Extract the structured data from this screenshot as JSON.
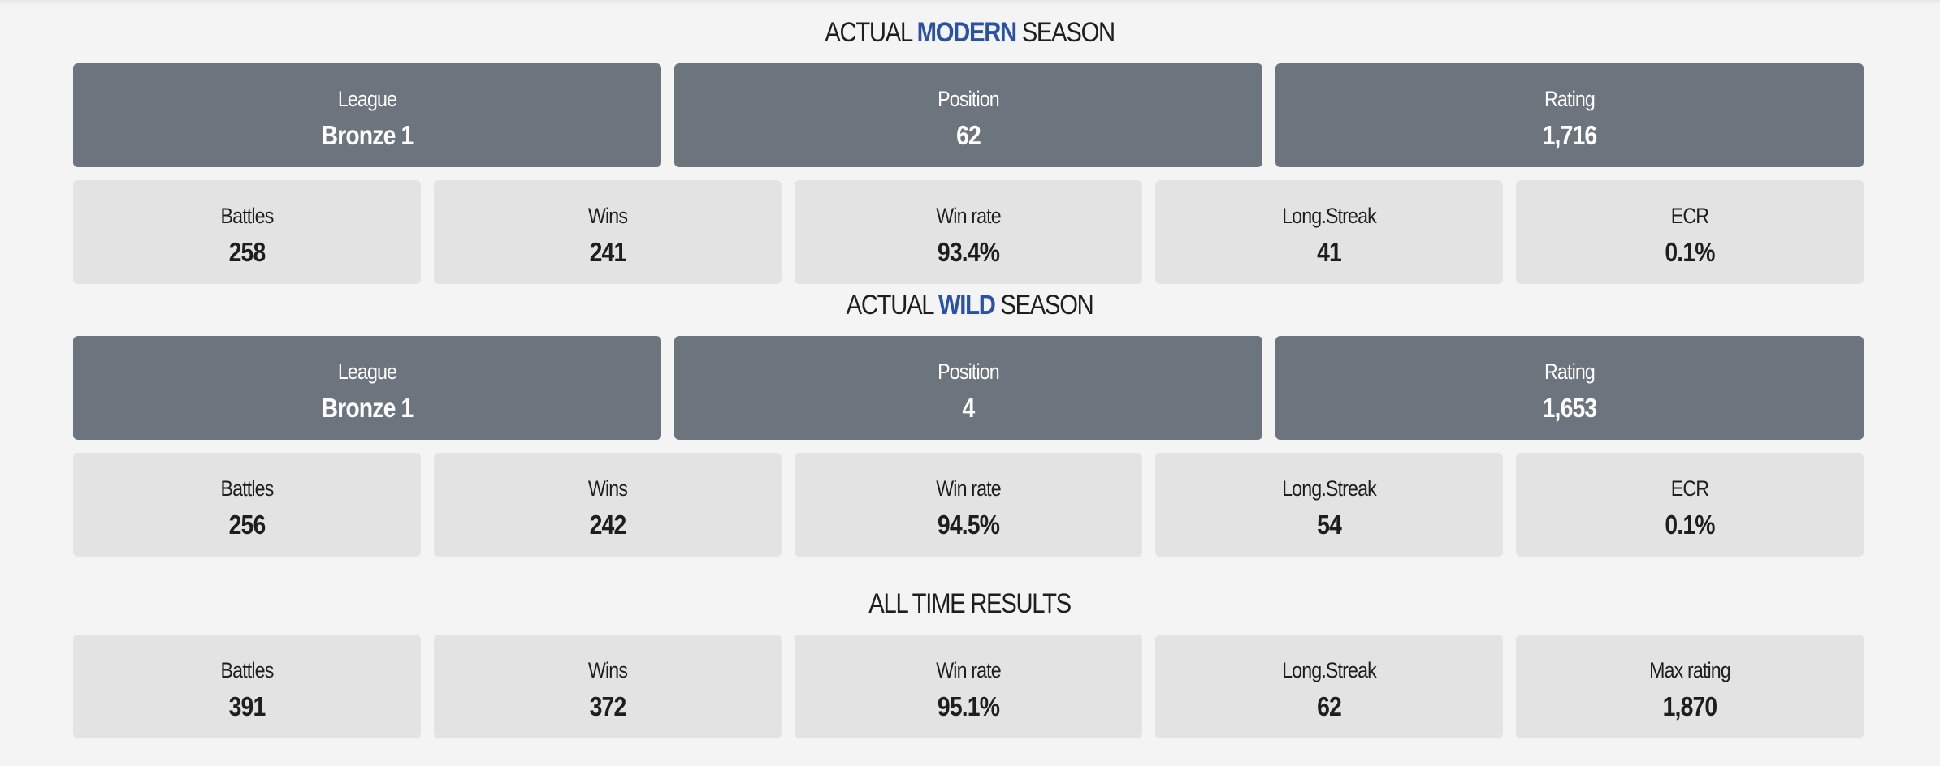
{
  "colors": {
    "accent": "#2b51a3",
    "dark_card": "#6c747e",
    "light_card": "#e3e3e3",
    "background": "#f4f4f4"
  },
  "modern": {
    "title_pre": "ACTUAL ",
    "title_accent": "MODERN",
    "title_post": " SEASON",
    "league": {
      "label": "League",
      "value": "Bronze 1"
    },
    "position": {
      "label": "Position",
      "value": "62"
    },
    "rating": {
      "label": "Rating",
      "value": "1,716"
    },
    "battles": {
      "label": "Battles",
      "value": "258"
    },
    "wins": {
      "label": "Wins",
      "value": "241"
    },
    "win_rate": {
      "label": "Win rate",
      "value": "93.4%"
    },
    "long_streak": {
      "label": "Long.Streak",
      "value": "41"
    },
    "ecr": {
      "label": "ECR",
      "value": "0.1%"
    }
  },
  "wild": {
    "title_pre": "ACTUAL ",
    "title_accent": "WILD",
    "title_post": " SEASON",
    "league": {
      "label": "League",
      "value": "Bronze 1"
    },
    "position": {
      "label": "Position",
      "value": "4"
    },
    "rating": {
      "label": "Rating",
      "value": "1,653"
    },
    "battles": {
      "label": "Battles",
      "value": "256"
    },
    "wins": {
      "label": "Wins",
      "value": "242"
    },
    "win_rate": {
      "label": "Win rate",
      "value": "94.5%"
    },
    "long_streak": {
      "label": "Long.Streak",
      "value": "54"
    },
    "ecr": {
      "label": "ECR",
      "value": "0.1%"
    }
  },
  "all_time": {
    "title": "ALL TIME RESULTS",
    "battles": {
      "label": "Battles",
      "value": "391"
    },
    "wins": {
      "label": "Wins",
      "value": "372"
    },
    "win_rate": {
      "label": "Win rate",
      "value": "95.1%"
    },
    "long_streak": {
      "label": "Long.Streak",
      "value": "62"
    },
    "max_rating": {
      "label": "Max rating",
      "value": "1,870"
    }
  }
}
